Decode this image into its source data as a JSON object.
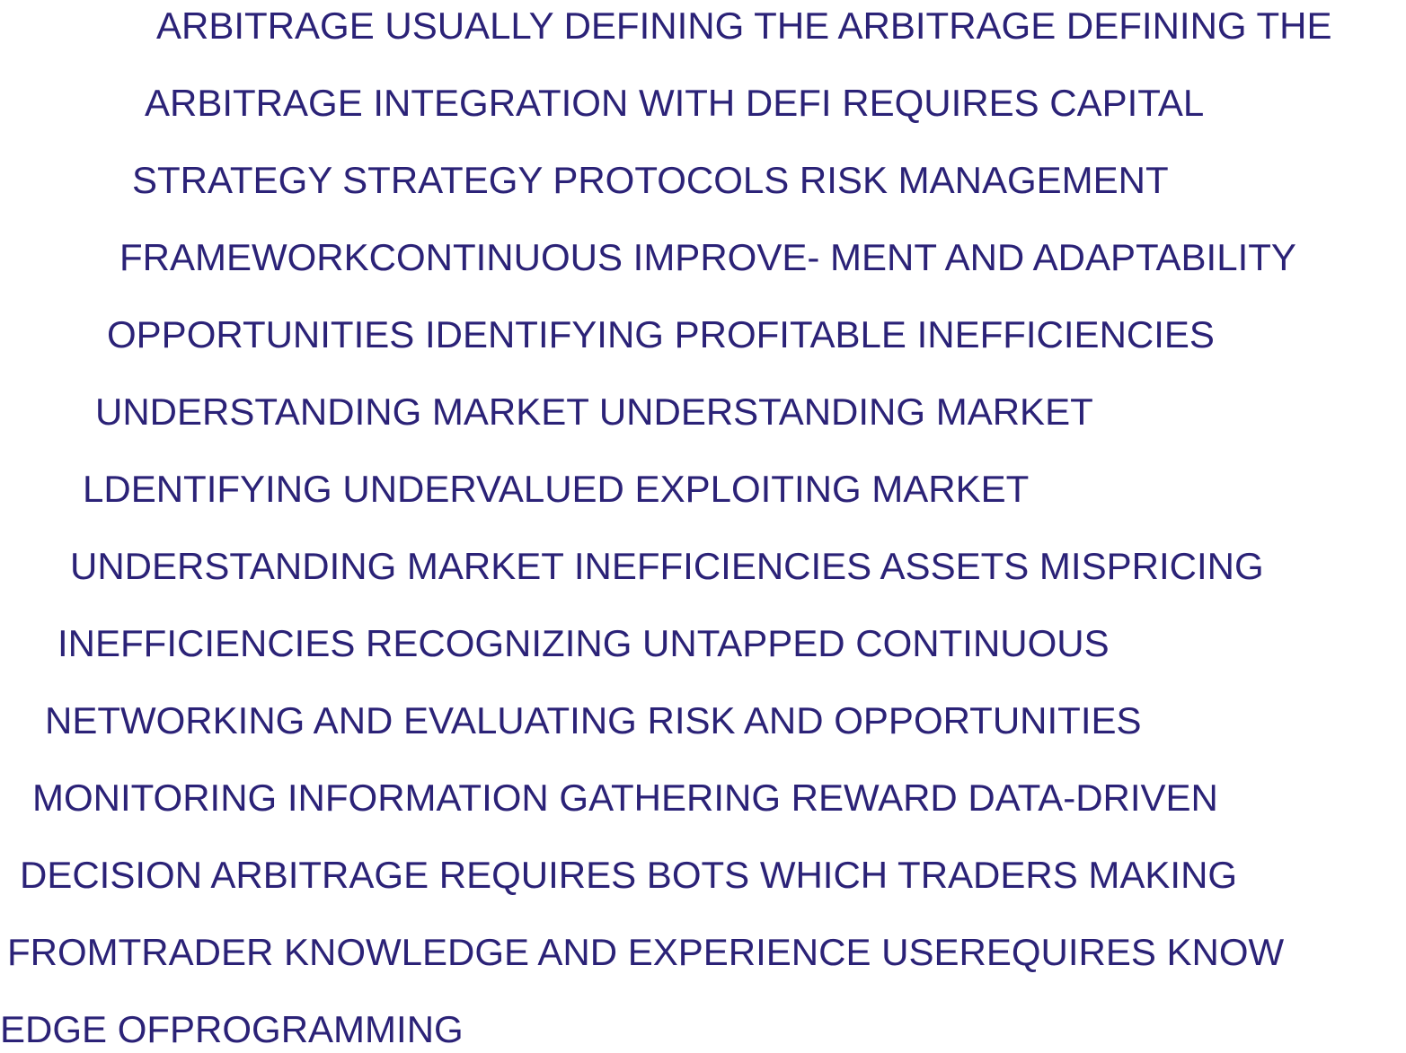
{
  "colors": {
    "text": "#2b2277",
    "background": "#ffffff"
  },
  "lines": [
    "ARBITRAGE USUALLY DEFINING THE ARBITRAGE DEFINING THE",
    "ARBITRAGE INTEGRATION WITH DEFI REQUIRES CAPITAL",
    "STRATEGY STRATEGY PROTOCOLS RISK MANAGEMENT",
    "FRAMEWORKCONTINUOUS IMPROVE- MENT AND ADAPTABILITY",
    "OPPORTUNITIES IDENTIFYING PROFITABLE INEFFICIENCIES",
    "UNDERSTANDING MARKET UNDERSTANDING MARKET",
    "LDENTIFYING UNDERVALUED EXPLOITING MARKET",
    "UNDERSTANDING MARKET INEFFICIENCIES ASSETS MISPRICING",
    "INEFFICIENCIES RECOGNIZING UNTAPPED CONTINUOUS",
    "NETWORKING AND EVALUATING RISK AND OPPORTUNITIES",
    "MONITORING INFORMATION GATHERING REWARD DATA-DRIVEN",
    "DECISION ARBITRAGE REQUIRES BOTS WHICH TRADERS MAKING",
    "FROMTRADER KNOWLEDGE AND EXPERIENCE USEREQUIRES KNOW",
    "EDGE OFPROGRAMMING"
  ]
}
